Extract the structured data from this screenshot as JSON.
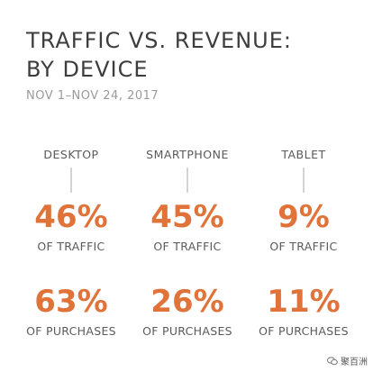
{
  "chart_data": {
    "type": "table",
    "title_lines": [
      "TRAFFIC VS. REVENUE:",
      "BY DEVICE"
    ],
    "subtitle": "NOV 1–NOV 24, 2017",
    "categories": [
      "DESKTOP",
      "SMARTPHONE",
      "TABLET"
    ],
    "series": [
      {
        "name": "OF TRAFFIC",
        "values": [
          46,
          45,
          9
        ]
      },
      {
        "name": "OF PURCHASES",
        "values": [
          63,
          26,
          11
        ]
      }
    ],
    "unit": "%",
    "accent_color": "#e0733a"
  },
  "watermark": {
    "icon": "wechat-icon",
    "text": "聚百洲"
  }
}
